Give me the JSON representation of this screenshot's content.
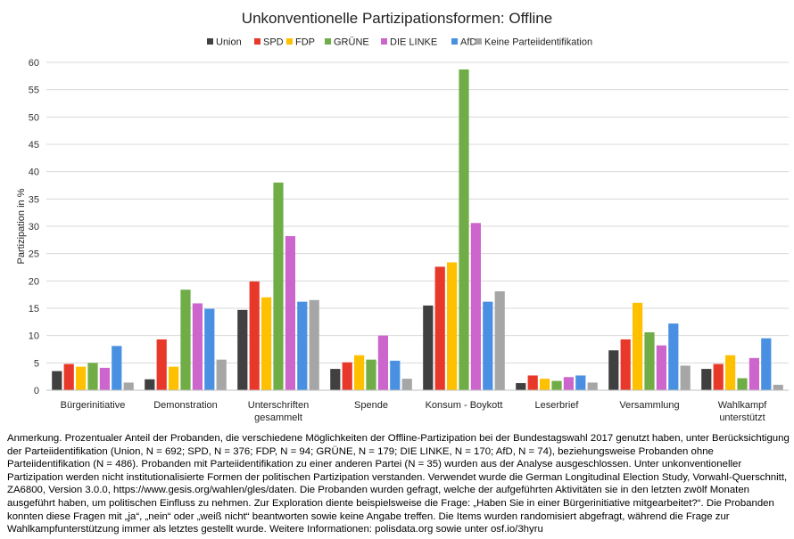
{
  "chart_data": {
    "type": "bar",
    "title": "Unkonventionelle Partizipationsformen: Offline",
    "ylabel": "Partizipation in %",
    "xlabel": "",
    "ylim": [
      0,
      60
    ],
    "yticks": [
      0,
      5,
      10,
      15,
      20,
      25,
      30,
      35,
      40,
      45,
      50,
      55,
      60
    ],
    "grid": true,
    "legend_position": "top",
    "categories": [
      [
        "Bürgerinitiative"
      ],
      [
        "Demonstration"
      ],
      [
        "Unterschriften",
        "gesammelt"
      ],
      [
        "Spende"
      ],
      [
        "Konsum - Boykott"
      ],
      [
        "Leserbrief"
      ],
      [
        "Versammlung"
      ],
      [
        "Wahlkampf",
        "unterstützt"
      ]
    ],
    "series": [
      {
        "name": "Union",
        "color": "#404040",
        "values": [
          3.5,
          2.0,
          14.7,
          3.9,
          15.5,
          1.3,
          7.3,
          3.9
        ]
      },
      {
        "name": "SPD",
        "color": "#e8382a",
        "values": [
          4.8,
          9.3,
          19.9,
          5.1,
          22.6,
          2.7,
          9.3,
          4.8
        ]
      },
      {
        "name": "FDP",
        "color": "#ffc000",
        "values": [
          4.3,
          4.3,
          17.0,
          6.4,
          23.4,
          2.1,
          16.0,
          6.4
        ]
      },
      {
        "name": "GRÜNE",
        "color": "#70ad47",
        "values": [
          5.0,
          18.4,
          38.0,
          5.6,
          58.7,
          1.7,
          10.6,
          2.2
        ]
      },
      {
        "name": "DIE LINKE",
        "color": "#cc66cc",
        "values": [
          4.1,
          15.9,
          28.2,
          10.0,
          30.6,
          2.4,
          8.2,
          5.9
        ]
      },
      {
        "name": "AfD",
        "color": "#4a90e2",
        "values": [
          8.1,
          14.9,
          16.2,
          5.4,
          16.2,
          2.7,
          12.2,
          9.5
        ]
      },
      {
        "name": "Keine Parteiidentifikation",
        "color": "#a6a6a6",
        "values": [
          1.4,
          5.6,
          16.5,
          2.1,
          18.1,
          1.4,
          4.5,
          1.0
        ]
      }
    ]
  },
  "note": "Anmerkung. Prozentualer Anteil der Probanden, die verschiedene Möglichkeiten der Offline-Partizipation bei der Bundestagswahl 2017 genutzt haben, unter Berücksichtigung der Parteiidentifikation (Union, N = 692; SPD, N = 376; FDP, N = 94; GRÜNE, N = 179; DIE LINKE, N = 170; AfD, N = 74), beziehungsweise Probanden ohne Parteiidentifikation (N = 486). Probanden mit Parteiidentifikation zu einer anderen Partei (N = 35) wurden aus der Analyse ausgeschlossen. Unter unkonventioneller Partizipation werden nicht institutionalisierte Formen der politischen Partizipation verstanden. Verwendet wurde die German Longitudinal Election Study, Vorwahl-Querschnitt, ZA6800, Version 3.0.0, https://www.gesis.org/wahlen/gles/daten. Die Probanden wurden gefragt, welche der aufgeführten Aktivitäten sie in den letzten zwölf Monaten ausgeführt haben, um politischen Einfluss zu nehmen. Zur Exploration diente beispielsweise die Frage: „Haben Sie in einer Bürgerinitiative mitgearbeitet?“. Die Probanden konnten diese Fragen mit „ja“, „nein“ oder „weiß nicht“ beantworten sowie keine Angabe treffen. Die Items wurden randomisiert abgefragt, während die Frage zur Wahlkampfunterstützung immer als letztes gestellt wurde. Weitere Informationen: polisdata.org sowie unter osf.io/3hyru"
}
